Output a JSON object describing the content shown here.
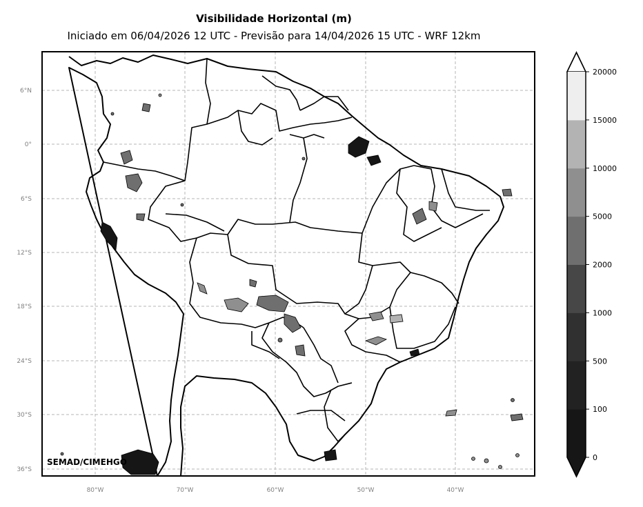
{
  "title": "Visibilidade Horizontal (m)",
  "subtitle": "Iniciado em 06/04/2026 12 UTC - Previsão para 14/04/2026 15 UTC - WRF 12km",
  "credit": "SEMAD/CIMEHGO",
  "lat_labels": [
    "6°N",
    "0°",
    "6°S",
    "12°S",
    "18°S",
    "24°S",
    "30°S",
    "36°S"
  ],
  "lon_labels": [
    "80°W",
    "70°W",
    "60°W",
    "50°W",
    "40°W"
  ],
  "colorbar": {
    "levels": [
      "0",
      "100",
      "500",
      "1000",
      "2000",
      "5000",
      "10000",
      "15000",
      "20000"
    ],
    "colors": [
      "#161616",
      "#222222",
      "#303030",
      "#474747",
      "#6f6f6f",
      "#8f8f8f",
      "#b3b3b3",
      "#eeeeee"
    ],
    "extend": "both"
  }
}
